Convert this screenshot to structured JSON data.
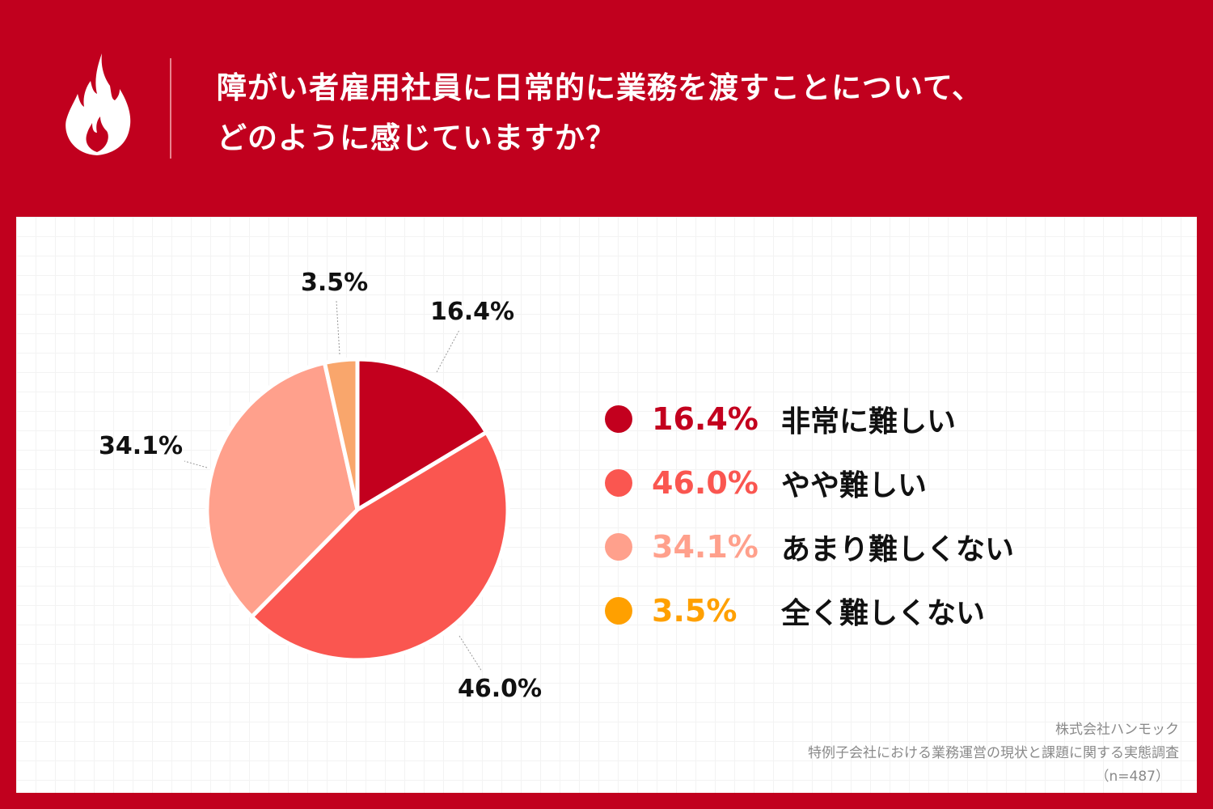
{
  "header": {
    "title_line1": "障がい者雇用社員に日常的に業務を渡すことについて、",
    "title_line2": "どのように感じていますか？",
    "logo_icon": "flame-icon"
  },
  "chart_data": {
    "type": "pie",
    "start": "top",
    "direction": "clockwise",
    "slices": [
      {
        "name": "非常に難しい",
        "value": 16.4,
        "label": "16.4%",
        "color": "#c3001e",
        "legend_color": "#c3001e"
      },
      {
        "name": "やや難しい",
        "value": 46.0,
        "label": "46.0%",
        "color": "#fa5650",
        "legend_color": "#fa5650"
      },
      {
        "name": "あまり難しくない",
        "value": 34.1,
        "label": "34.1%",
        "color": "#ffa08c",
        "legend_color": "#ffa08c"
      },
      {
        "name": "全く難しくない",
        "value": 3.5,
        "label": "3.5%",
        "color": "#f9a66c",
        "legend_color": "#ffa000"
      }
    ],
    "legend_placement": "right"
  },
  "source": {
    "company": "株式会社ハンモック",
    "survey": "特例子会社における業務運営の現状と課題に関する実態調査",
    "n": "（n=487）"
  }
}
